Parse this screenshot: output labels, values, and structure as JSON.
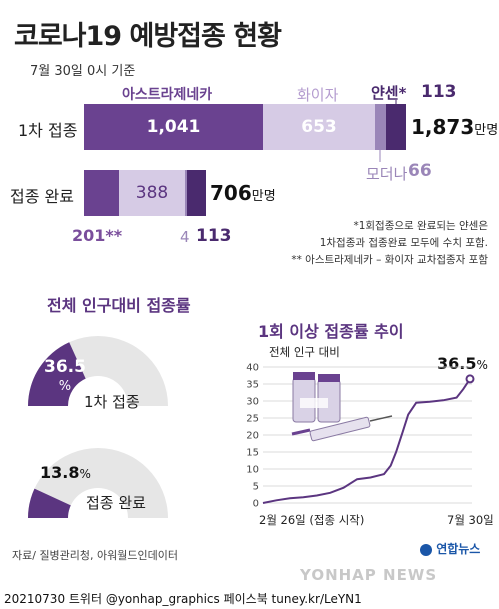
{
  "title": "코로나19 예방접종 현황",
  "date": "7월 30일 0시 기준",
  "bar_chart": {
    "legend": {
      "az": "아스트라제네카",
      "pfizer": "화이자",
      "janssen": "얀센*",
      "janssen_value": "113",
      "moderna": "모더나",
      "moderna_value": "66"
    },
    "row1": {
      "label": "1차 접종",
      "az": "1,041",
      "pfizer": "653",
      "total": "1,873",
      "unit": "만명"
    },
    "row2": {
      "label": "접종 완료",
      "pfizer": "388",
      "total": "706",
      "unit": "만명",
      "az_label": "201**",
      "moderna_label": "4",
      "janssen_label": "113"
    },
    "notes": [
      "*1회접종으로 완료되는 얀센은",
      "1차접종과 접종완료 모두에 수치 포함.",
      "** 아스트라제네카 – 화이자 교차접종자 포함"
    ]
  },
  "gauges": {
    "title": "전체 인구대비 접종률",
    "first": {
      "value": "36.5",
      "unit": "%",
      "label": "1차 접종",
      "fraction": 0.365
    },
    "full": {
      "value": "13.8",
      "unit": "%",
      "label": "접종 완료",
      "fraction": 0.138
    }
  },
  "trend": {
    "title": "1회 이상  접종률 추이",
    "ylabel": "전체 인구 대비",
    "end_value": "36.5",
    "end_unit": "%",
    "x_start": "2월 26일 (접종 시작)",
    "x_end": "7월 30일"
  },
  "source": "자료/ 질병관리청, 아워월드인데이터",
  "logo": "연합뉴스",
  "watermark": "YONHAP NEWS",
  "footer": "20210730  트위터 @yonhap_graphics  페이스북 tuney.kr/LeYN1",
  "colors": {
    "az": "#6a4290",
    "pfizer": "#d6cbe5",
    "janssen_bar": "#4a2a6e",
    "moderna_bar": "#9a86b8",
    "accent": "#7a4e9c",
    "gauge_bg": "#e6e6e6"
  },
  "chart_data": [
    {
      "type": "bar",
      "title": "",
      "orientation": "horizontal",
      "stacked": true,
      "categories": [
        "1차 접종",
        "접종 완료"
      ],
      "series": [
        {
          "name": "아스트라제네카",
          "values": [
            1041,
            201
          ]
        },
        {
          "name": "화이자",
          "values": [
            653,
            388
          ]
        },
        {
          "name": "모더나",
          "values": [
            66,
            4
          ]
        },
        {
          "name": "얀센*",
          "values": [
            113,
            113
          ]
        }
      ],
      "totals": [
        1873,
        706
      ],
      "unit": "만명"
    },
    {
      "type": "pie",
      "title": "전체 인구대비 접종률",
      "categories": [
        "1차 접종",
        "접종 완료"
      ],
      "values": [
        36.5,
        13.8
      ],
      "unit": "%"
    },
    {
      "type": "line",
      "title": "1회 이상  접종률 추이",
      "ylabel": "전체 인구 대비",
      "xlabel": "",
      "x_tick_labels": [
        "2월 26일 (접종 시작)",
        "7월 30일"
      ],
      "y_ticks": [
        0,
        5,
        10,
        15,
        20,
        25,
        30,
        35,
        40
      ],
      "ylim": [
        0,
        40
      ],
      "grid": true,
      "series": [
        {
          "x": [
            "2021-02-26",
            "2021-03-08",
            "2021-03-18",
            "2021-03-28",
            "2021-04-07",
            "2021-04-17",
            "2021-04-27",
            "2021-05-07",
            "2021-05-17",
            "2021-05-27",
            "2021-06-01",
            "2021-06-05",
            "2021-06-10",
            "2021-06-14",
            "2021-06-20",
            "2021-06-30",
            "2021-07-10",
            "2021-07-20",
            "2021-07-25",
            "2021-07-30"
          ],
          "y": [
            0.0,
            0.8,
            1.4,
            1.7,
            2.2,
            3.0,
            4.5,
            7.0,
            7.5,
            8.5,
            11.0,
            15.0,
            21.0,
            26.0,
            29.5,
            29.8,
            30.2,
            31.0,
            33.5,
            36.5
          ]
        }
      ]
    }
  ]
}
